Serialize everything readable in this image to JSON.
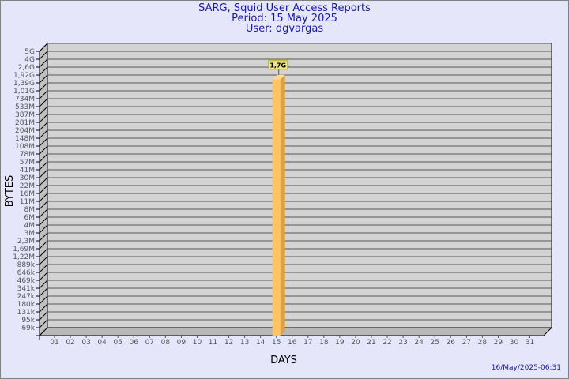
{
  "header": {
    "title": "SARG, Squid User Access Reports",
    "period": "Period: 15 May 2025",
    "user": "User: dgvargas"
  },
  "footer": {
    "timestamp": "16/May/2025-06:31"
  },
  "colors": {
    "background": "#e6e6fa",
    "plot": "#d3d3d3",
    "bar": "#ffc462",
    "bar_side": "#e0a040",
    "text": "#1a1aa0"
  },
  "chart_data": {
    "type": "bar",
    "style": "3d",
    "xlabel": "DAYS",
    "ylabel": "BYTES",
    "yscale": "log",
    "grid": true,
    "categories": [
      "01",
      "02",
      "03",
      "04",
      "05",
      "06",
      "07",
      "08",
      "09",
      "10",
      "11",
      "12",
      "13",
      "14",
      "15",
      "16",
      "17",
      "18",
      "19",
      "20",
      "21",
      "22",
      "23",
      "24",
      "25",
      "26",
      "27",
      "28",
      "29",
      "30",
      "31"
    ],
    "ytick_labels": [
      "5G",
      "4G",
      "2,6G",
      "1,92G",
      "1,39G",
      "1,01G",
      "734M",
      "533M",
      "387M",
      "281M",
      "204M",
      "148M",
      "108M",
      "78M",
      "57M",
      "41M",
      "30M",
      "22M",
      "16M",
      "11M",
      "8M",
      "6M",
      "4M",
      "3M",
      "2,3M",
      "1,69M",
      "1,22M",
      "889k",
      "646k",
      "469k",
      "341k",
      "247k",
      "180k",
      "131k",
      "95k",
      "69k"
    ],
    "ytick_values": [
      5000000000.0,
      4000000000.0,
      2600000000.0,
      1920000000.0,
      1390000000.0,
      1010000000.0,
      734000000.0,
      533000000.0,
      387000000.0,
      281000000.0,
      204000000.0,
      148000000.0,
      108000000.0,
      78000000.0,
      57000000.0,
      41000000.0,
      30000000.0,
      22000000.0,
      16000000.0,
      11000000.0,
      8000000.0,
      6000000.0,
      4000000.0,
      3000000.0,
      2300000.0,
      1690000.0,
      1220000.0,
      889000.0,
      646000.0,
      469000.0,
      341000.0,
      247000.0,
      180000.0,
      131000.0,
      95000.0,
      69000.0
    ],
    "series": [
      {
        "points": [
          {
            "x": "15",
            "y": 1700000000.0,
            "label": "1,7G"
          }
        ]
      }
    ]
  }
}
